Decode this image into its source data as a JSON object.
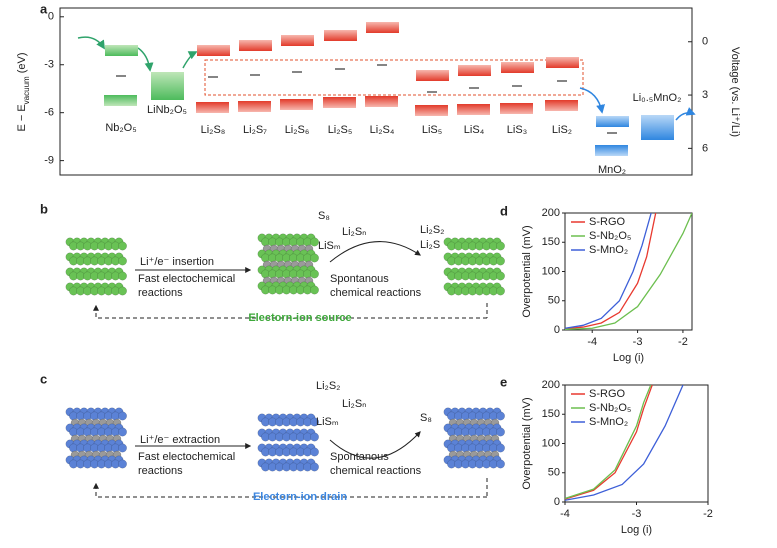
{
  "panel_labels": [
    "a",
    "b",
    "c",
    "d",
    "e"
  ],
  "energy_diagram": {
    "ylabel": [
      "E − E",
      "vacuum",
      " (eV)"
    ],
    "y2label": "Voltage (vs. Li⁺/Li)",
    "ylim": [
      -9.9,
      0.55
    ],
    "yticks": [
      0,
      -3,
      -6,
      -9
    ],
    "y2lim": [
      -1.9,
      7.5
    ],
    "y2ticks": [
      0,
      3,
      6
    ],
    "y2_inverted": true,
    "compounds": [
      "Nb₂O₅",
      "LiNb₂O₅",
      "Li₂S₈",
      "Li₂S₇",
      "Li₂S₆",
      "Li₂S₅",
      "Li₂S₄",
      "LiS₅",
      "LiS₄",
      "LiS₃",
      "LiS₂",
      "MnO₂",
      "Li₀.₅MnO₂"
    ]
  },
  "schematic_b": {
    "species_top": [
      "S₈",
      "Li₂Sₙ",
      "LiSₘ"
    ],
    "species_products": [
      "Li₂S₂",
      "Li₂S"
    ],
    "step1": "Li⁺/e⁻ insertion",
    "step1_detail": [
      "Fast electochemical",
      "reactions"
    ],
    "step2_detail": [
      "Spontanous",
      "chemical reactions"
    ],
    "caption": "Electorn-ion source"
  },
  "schematic_c": {
    "species_top": [
      "Li₂S₂",
      "Li₂Sₙ",
      "LiSₘ"
    ],
    "species_products": [
      "S₈"
    ],
    "step1": "Li⁺/e⁻ extraction",
    "step1_detail": [
      "Fast electochemical",
      "reactions"
    ],
    "step2_detail": [
      "Spontanous",
      "chemical reactions"
    ],
    "caption": "Electorn-ion drain"
  },
  "chart_data": [
    {
      "type": "line",
      "xlabel": "Log (i)",
      "ylabel": "Overpotential (mV)",
      "xlim": [
        -4.6,
        -1.8
      ],
      "ylim": [
        0,
        200
      ],
      "xticks": [
        -4,
        -3,
        -2
      ],
      "yticks": [
        0,
        50,
        100,
        150,
        200
      ],
      "legend": "upper left",
      "series": [
        {
          "name": "S-RGO",
          "color": "#e8392f",
          "x": [
            -4.6,
            -4.2,
            -3.8,
            -3.4,
            -3.0,
            -2.8,
            -2.6
          ],
          "values": [
            2,
            5,
            12,
            30,
            80,
            125,
            200
          ]
        },
        {
          "name": "S-Nb₂O₅",
          "color": "#6cbf4f",
          "x": [
            -4.6,
            -4.0,
            -3.5,
            -3.0,
            -2.5,
            -2.0,
            -1.8
          ],
          "values": [
            1,
            3,
            12,
            40,
            95,
            165,
            200
          ]
        },
        {
          "name": "S-MnO₂",
          "color": "#3d5fd8",
          "x": [
            -4.6,
            -4.2,
            -3.8,
            -3.4,
            -3.1,
            -2.9,
            -2.7
          ],
          "values": [
            3,
            8,
            20,
            50,
            100,
            145,
            200
          ]
        }
      ]
    },
    {
      "type": "line",
      "xlabel": "Log (i)",
      "ylabel": "Overpotential (mV)",
      "xlim": [
        -4,
        -2
      ],
      "ylim": [
        0,
        200
      ],
      "xticks": [
        -4,
        -3,
        -2
      ],
      "yticks": [
        0,
        50,
        100,
        150,
        200
      ],
      "legend": "upper left",
      "series": [
        {
          "name": "S-RGO",
          "color": "#e8392f",
          "x": [
            -4,
            -3.6,
            -3.3,
            -3.0,
            -2.9,
            -2.78
          ],
          "values": [
            5,
            20,
            50,
            120,
            160,
            200
          ]
        },
        {
          "name": "S-Nb₂O₅",
          "color": "#6cbf4f",
          "x": [
            -4,
            -3.6,
            -3.3,
            -3.0,
            -2.9,
            -2.8
          ],
          "values": [
            6,
            22,
            55,
            130,
            170,
            200
          ]
        },
        {
          "name": "S-MnO₂",
          "color": "#3d5fd8",
          "x": [
            -4,
            -3.6,
            -3.2,
            -2.9,
            -2.6,
            -2.35
          ],
          "values": [
            3,
            12,
            30,
            65,
            130,
            200
          ]
        }
      ]
    }
  ]
}
